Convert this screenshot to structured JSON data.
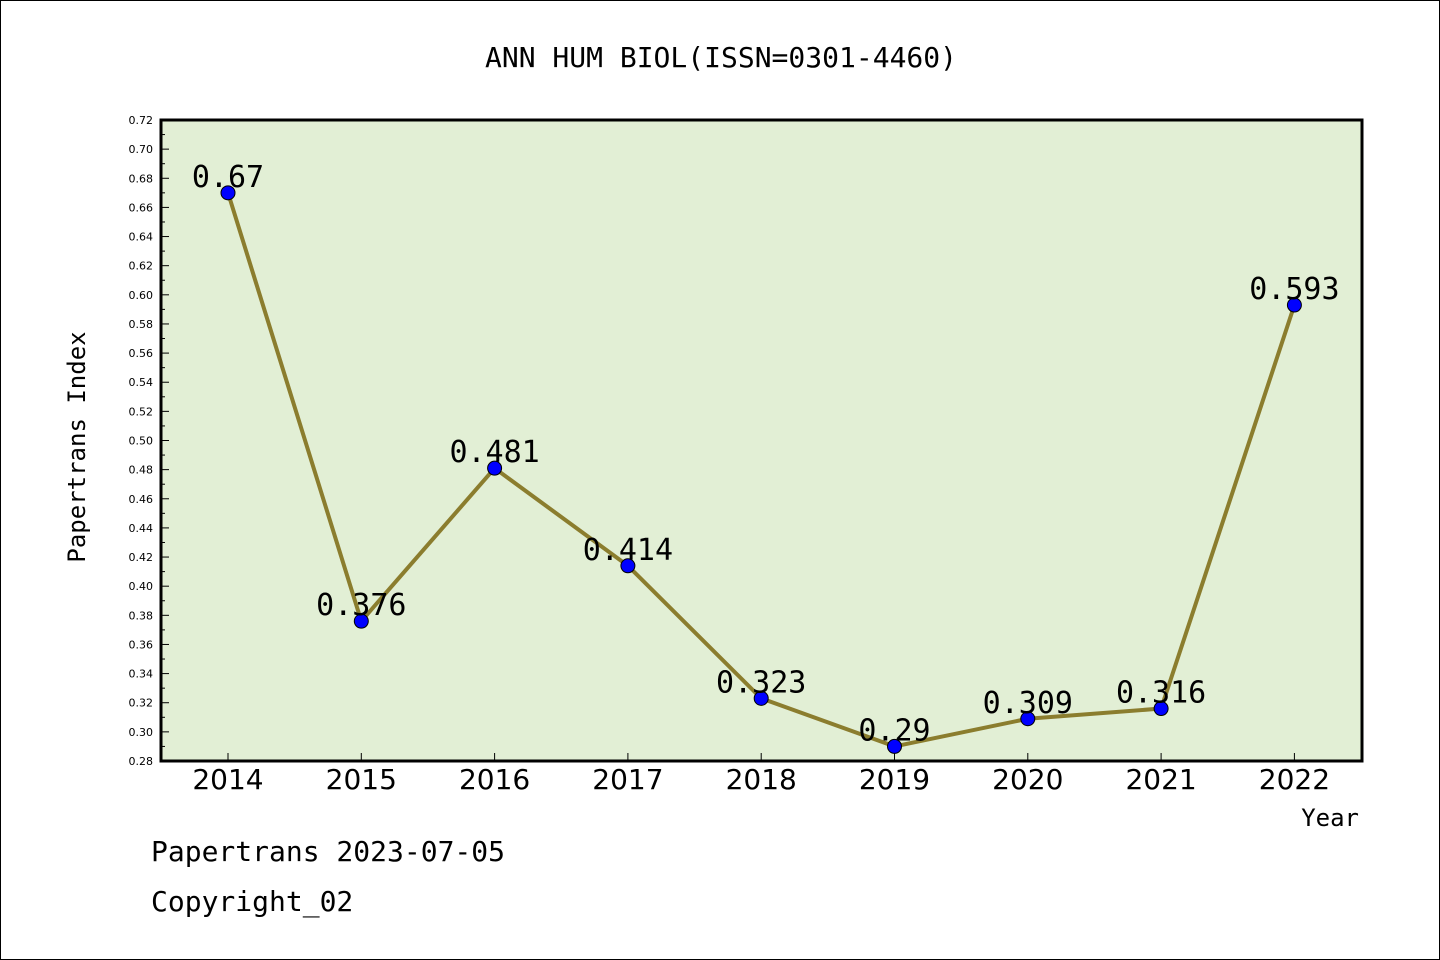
{
  "chart_data": {
    "type": "line",
    "title": "ANN HUM BIOL(ISSN=0301-4460)",
    "xlabel": "Year",
    "ylabel": "Papertrans Index",
    "categories": [
      "2014",
      "2015",
      "2016",
      "2017",
      "2018",
      "2019",
      "2020",
      "2021",
      "2022"
    ],
    "series": [
      {
        "values": [
          0.67,
          0.376,
          0.481,
          0.414,
          0.323,
          0.29,
          0.309,
          0.316,
          0.593
        ],
        "line_color": "#8b7d2e",
        "marker_color": "#0000ff"
      }
    ],
    "data_labels": [
      "0.67",
      "0.376",
      "0.481",
      "0.414",
      "0.323",
      "0.29",
      "0.309",
      "0.316",
      "0.593"
    ],
    "ylim": [
      0.28,
      0.72
    ],
    "yticks": [
      "0.28",
      "0.30",
      "0.32",
      "0.34",
      "0.36",
      "0.38",
      "0.40",
      "0.42",
      "0.44",
      "0.46",
      "0.48",
      "0.50",
      "0.52",
      "0.54",
      "0.56",
      "0.58",
      "0.60",
      "0.62",
      "0.64",
      "0.66",
      "0.68",
      "0.70",
      "0.72"
    ],
    "plot_background": "#e2efd5",
    "grid": false,
    "legend": "none"
  },
  "footer": {
    "line1": "Papertrans 2023-07-05",
    "line2": "Copyright_02"
  }
}
